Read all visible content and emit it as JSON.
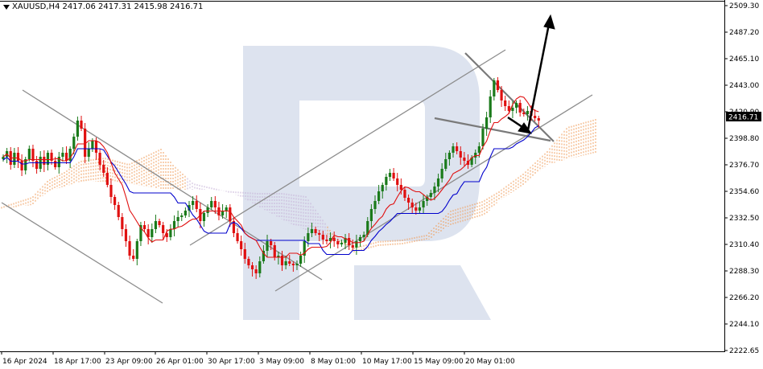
{
  "header": {
    "symbol": "XAUUSD,H4",
    "ohlc": "2417.06 2417.31 2415.98 2416.71"
  },
  "price_axis": {
    "labels": [
      "2509.30",
      "2487.20",
      "2465.10",
      "2443.00",
      "2420.90",
      "2398.80",
      "2376.70",
      "2354.60",
      "2332.50",
      "2310.40",
      "2288.30",
      "2266.20",
      "2244.10",
      "2222.65"
    ],
    "current_price": "2416.71",
    "range": [
      2222.65,
      2509.3
    ]
  },
  "time_axis": {
    "labels": [
      "16 Apr 2024",
      "18 Apr 17:00",
      "23 Apr 09:00",
      "26 Apr 01:00",
      "30 Apr 17:00",
      "3 May 09:00",
      "8 May 01:00",
      "10 May 17:00",
      "15 May 09:00",
      "20 May 01:00"
    ]
  },
  "colors": {
    "bull_candle": "#1a7a1a",
    "bear_candle": "#e01010",
    "tenkan_sen": "#e01010",
    "kijun_sen": "#0000cc",
    "cloud_orange": "#f0a060",
    "cloud_lavender": "#c8b4d8",
    "trend_channel": "#8c8c8c",
    "forecast_arrow": "#000000",
    "price_label_bg": "#000000",
    "watermark": "#dde3ef"
  },
  "watermark": {
    "icon": "broker-logo-r-icon"
  },
  "icons": {
    "dropdown": "triangle-down-icon"
  }
}
